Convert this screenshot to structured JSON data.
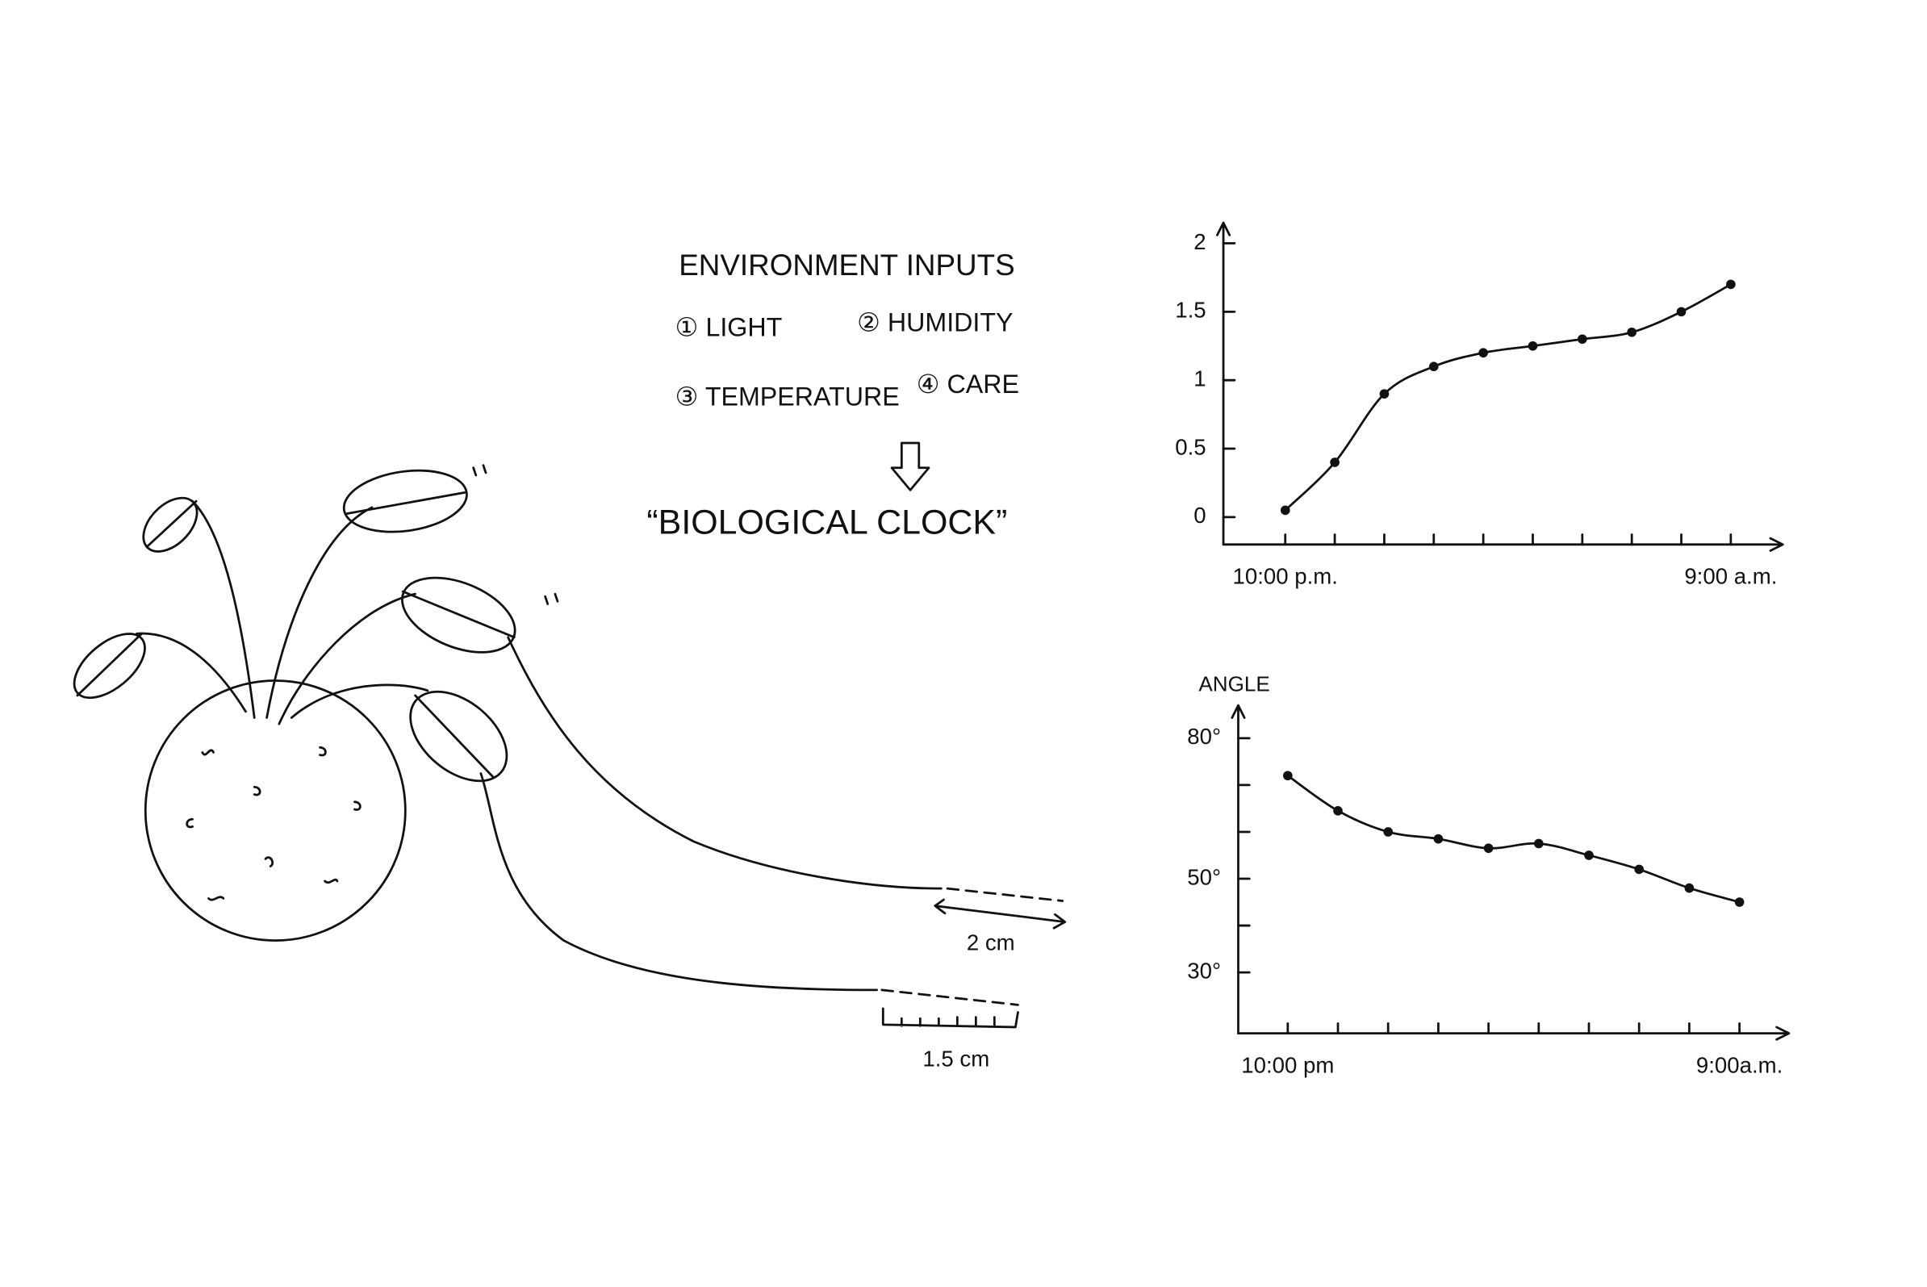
{
  "diagram": {
    "inputs_title": "ENVIRONMENT INPUTS",
    "inputs": [
      "① LIGHT",
      "② HUMIDITY",
      "③ TEMPERATURE",
      "④ CARE"
    ],
    "result": "“BIOLOGICAL CLOCK”",
    "growth_long": "2 cm",
    "growth_short": "1.5 cm"
  },
  "chart_data": [
    {
      "type": "line",
      "color": "#111111",
      "categories": [
        "10:00 p.m.",
        null,
        null,
        null,
        null,
        null,
        null,
        null,
        null,
        "9:00 a.m."
      ],
      "values": [
        0.05,
        0.4,
        0.9,
        1.1,
        1.2,
        1.25,
        1.3,
        1.35,
        1.5,
        1.7
      ],
      "ylim": [
        -0.2,
        2.15
      ],
      "yticks": [
        0,
        0.5,
        1,
        1.5,
        2
      ]
    },
    {
      "type": "line",
      "color": "#111111",
      "y_label": "ANGLE",
      "categories": [
        "10:00 pm",
        null,
        null,
        null,
        null,
        null,
        null,
        null,
        null,
        "9:00a.m."
      ],
      "values": [
        72,
        64.5,
        60,
        58.5,
        56.5,
        57.5,
        55,
        52,
        48,
        45
      ],
      "ylim": [
        17,
        87
      ],
      "yticks": [
        {
          "value": 30,
          "label": "30°"
        },
        {
          "value": 40,
          "label": null
        },
        {
          "value": 50,
          "label": "50°"
        },
        {
          "value": 60,
          "label": null
        },
        {
          "value": 70,
          "label": null
        },
        {
          "value": 80,
          "label": "80°"
        }
      ]
    }
  ]
}
